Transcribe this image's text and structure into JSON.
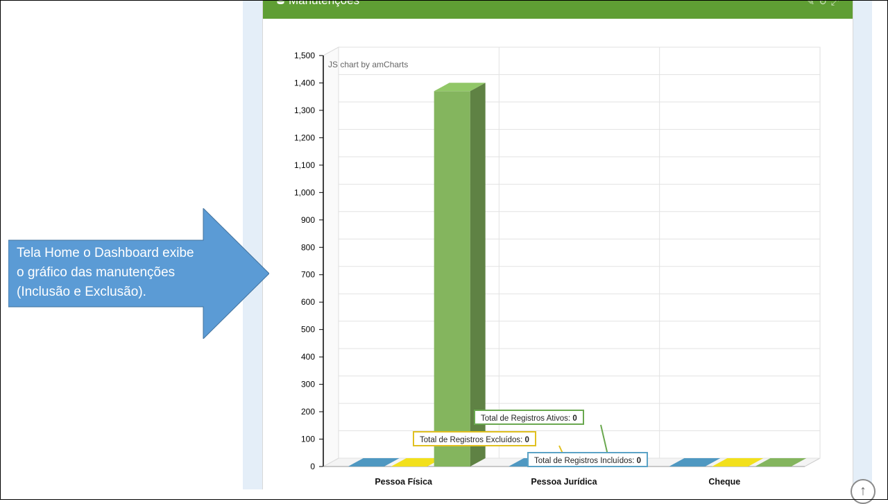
{
  "panel": {
    "title": "Manutenções",
    "icon": "database-icon",
    "tools": [
      "wrench-icon",
      "refresh-icon",
      "expand-icon"
    ],
    "header_color": "#5f9e34"
  },
  "annotation": {
    "lines": [
      "Tela Home o Dashboard exibe",
      "o gráfico das manutenções",
      "(Inclusão e Exclusão)."
    ],
    "color": "#5b9bd5"
  },
  "chart_credit": "JS chart by amCharts",
  "tooltips": {
    "ativos": {
      "label": "Total de Registros Ativos:",
      "value": "0",
      "border": "#6aa84f"
    },
    "excluidos": {
      "label": "Total de Registros Excluídos:",
      "value": "0",
      "border": "#e0c020"
    },
    "incluidos": {
      "label": "Total de Registros Incluídos:",
      "value": "0",
      "border": "#5ba3c6"
    }
  },
  "chart_data": {
    "type": "bar",
    "categories": [
      "Pessoa Física",
      "Pessoa Jurídica",
      "Cheque"
    ],
    "series": [
      {
        "values": [
          0,
          0,
          0
        ],
        "color": "#4f98c1"
      },
      {
        "values": [
          0,
          0,
          0
        ],
        "color": "#f2e01c"
      },
      {
        "values": [
          1370,
          0,
          0
        ],
        "color": "#84b55e"
      }
    ],
    "ylim": [
      0,
      1500
    ],
    "yticks": [
      0,
      100,
      200,
      300,
      400,
      500,
      600,
      700,
      800,
      900,
      1000,
      1100,
      1200,
      1300,
      1400,
      1500
    ],
    "ytick_labels": [
      "0",
      "100",
      "200",
      "300",
      "400",
      "500",
      "600",
      "700",
      "800",
      "900",
      "1,000",
      "1,100",
      "1,200",
      "1,300",
      "1,400",
      "1,500"
    ],
    "grid": true,
    "three_d": true
  }
}
